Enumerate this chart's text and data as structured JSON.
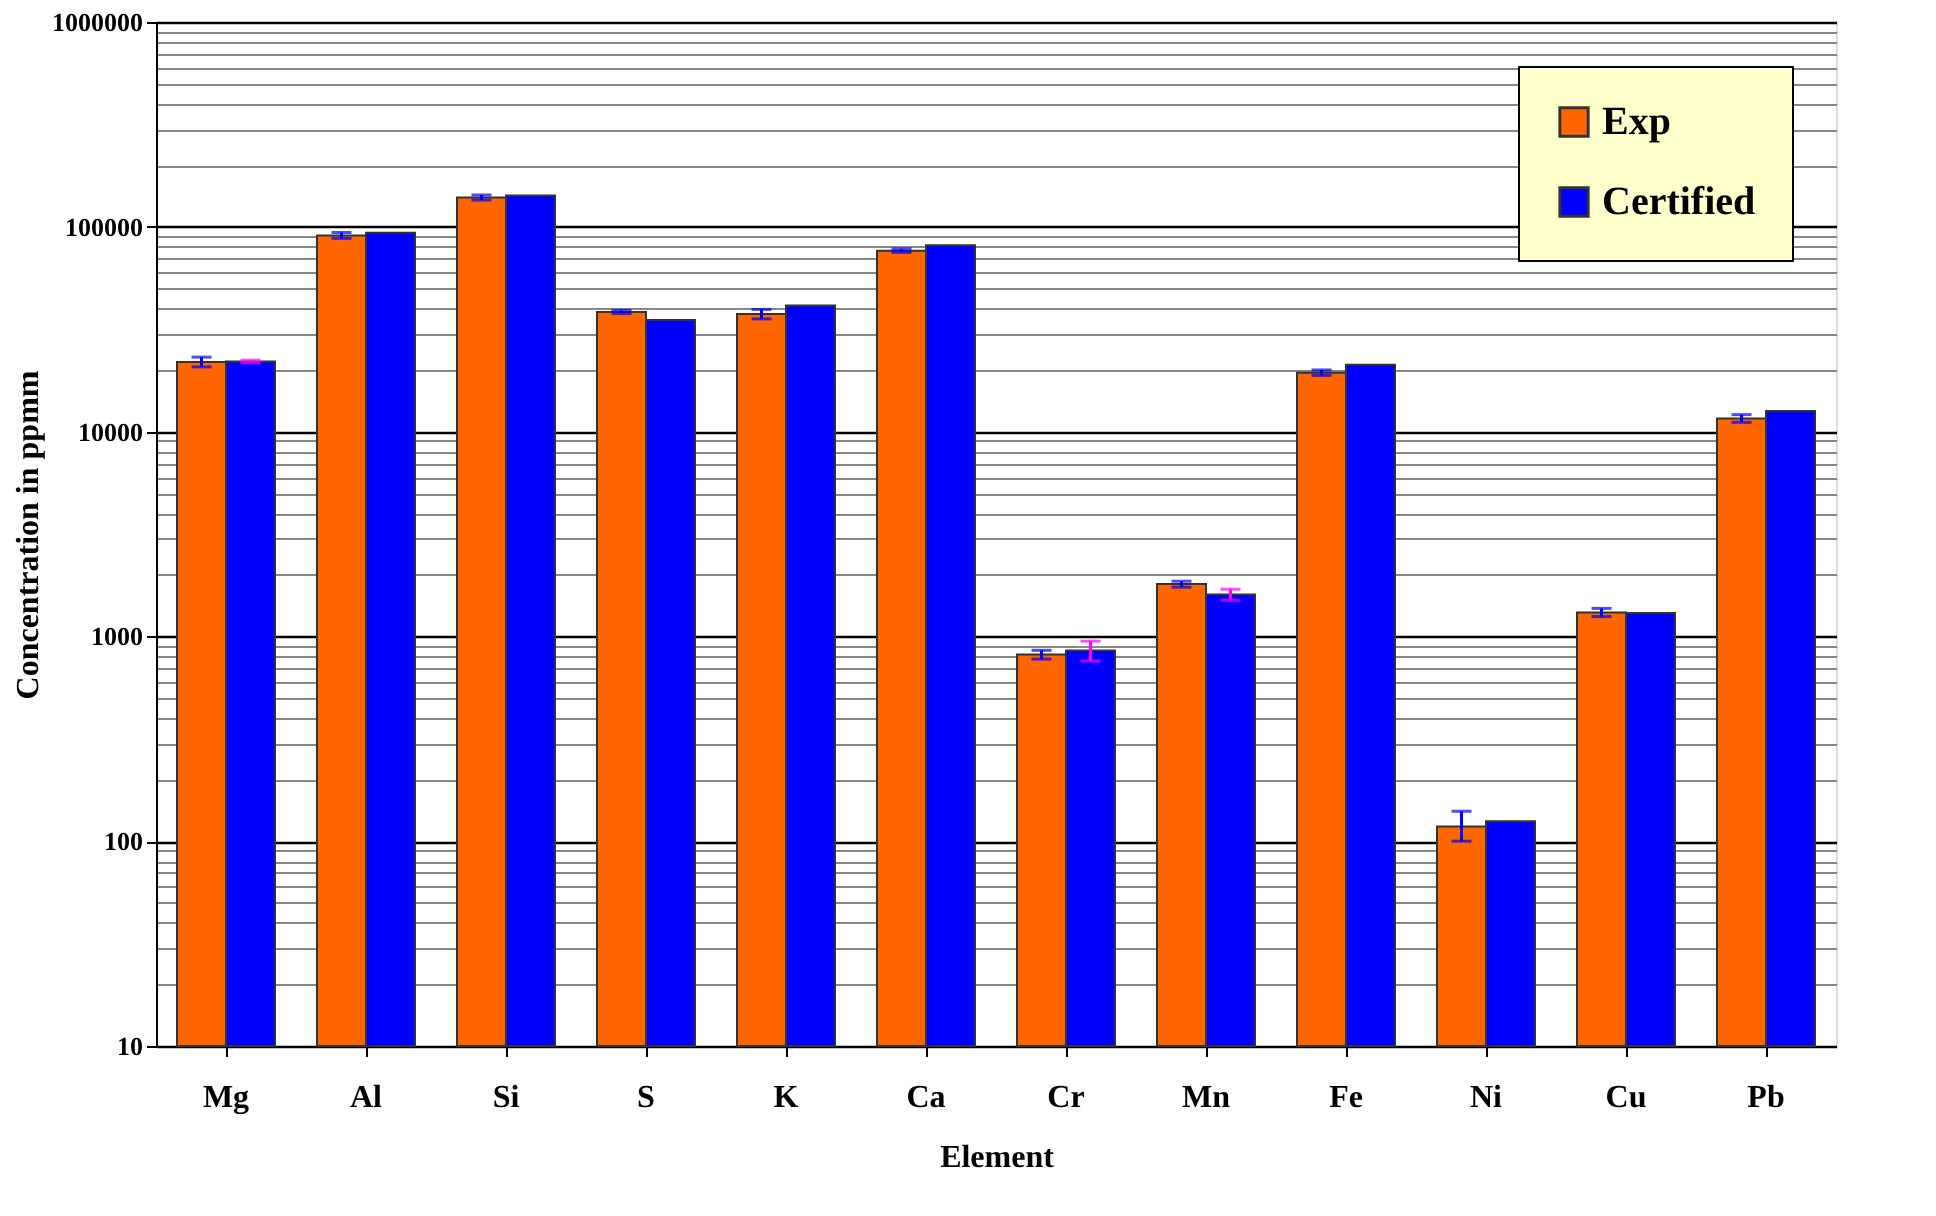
{
  "chart_data": {
    "type": "bar",
    "xlabel": "Element",
    "ylabel": "Concentration in ppmm",
    "categories": [
      "Mg",
      "Al",
      "Si",
      "S",
      "K",
      "Ca",
      "Cr",
      "Mn",
      "Fe",
      "Ni",
      "Cu",
      "Pb"
    ],
    "series": [
      {
        "name": "Exp",
        "color": "#ff6600",
        "values": [
          21900,
          90800,
          139000,
          38400,
          37500,
          76500,
          815,
          1800,
          19400,
          118,
          1310,
          11600
        ],
        "errors": [
          1200,
          3000,
          4000,
          700,
          2000,
          1500,
          40,
          60,
          600,
          [
            100,
            140
          ],
          60,
          500
        ]
      },
      {
        "name": "Certified",
        "color": "#0000ff",
        "values": [
          22000,
          93500,
          142000,
          35100,
          41300,
          81200,
          853,
          1600,
          21200,
          125,
          1300,
          12600
        ],
        "errors": [
          300,
          null,
          null,
          null,
          null,
          null,
          95,
          100,
          null,
          null,
          null,
          null
        ]
      }
    ],
    "log": true,
    "ylim": [
      10,
      1000000
    ],
    "yticks": [
      10,
      {
        "value": 20,
        "label": null
      },
      {
        "value": 30,
        "label": null
      },
      {
        "value": 40,
        "label": null
      },
      {
        "value": 50,
        "label": null
      },
      {
        "value": 60,
        "label": null
      },
      {
        "value": 70,
        "label": null
      },
      {
        "value": 80,
        "label": null
      },
      {
        "value": 90,
        "label": null
      },
      100,
      {
        "value": 200,
        "label": null
      },
      {
        "value": 300,
        "label": null
      },
      {
        "value": 400,
        "label": null
      },
      {
        "value": 500,
        "label": null
      },
      {
        "value": 600,
        "label": null
      },
      {
        "value": 700,
        "label": null
      },
      {
        "value": 800,
        "label": null
      },
      {
        "value": 900,
        "label": null
      },
      1000,
      {
        "value": 2000,
        "label": null
      },
      {
        "value": 3000,
        "label": null
      },
      {
        "value": 4000,
        "label": null
      },
      {
        "value": 5000,
        "label": null
      },
      {
        "value": 6000,
        "label": null
      },
      {
        "value": 7000,
        "label": null
      },
      {
        "value": 8000,
        "label": null
      },
      {
        "value": 9000,
        "label": null
      },
      10000,
      {
        "value": 20000,
        "label": null
      },
      {
        "value": 30000,
        "label": null
      },
      {
        "value": 40000,
        "label": null
      },
      {
        "value": 50000,
        "label": null
      },
      {
        "value": 60000,
        "label": null
      },
      {
        "value": 70000,
        "label": null
      },
      {
        "value": 80000,
        "label": null
      },
      {
        "value": 90000,
        "label": null
      },
      100000,
      {
        "value": 200000,
        "label": null
      },
      {
        "value": 300000,
        "label": null
      },
      {
        "value": 400000,
        "label": null
      },
      {
        "value": 500000,
        "label": null
      },
      {
        "value": 600000,
        "label": null
      },
      {
        "value": 700000,
        "label": null
      },
      {
        "value": 800000,
        "label": null
      },
      {
        "value": 900000,
        "label": null
      },
      1000000
    ],
    "grid": true,
    "legend": "top right"
  }
}
